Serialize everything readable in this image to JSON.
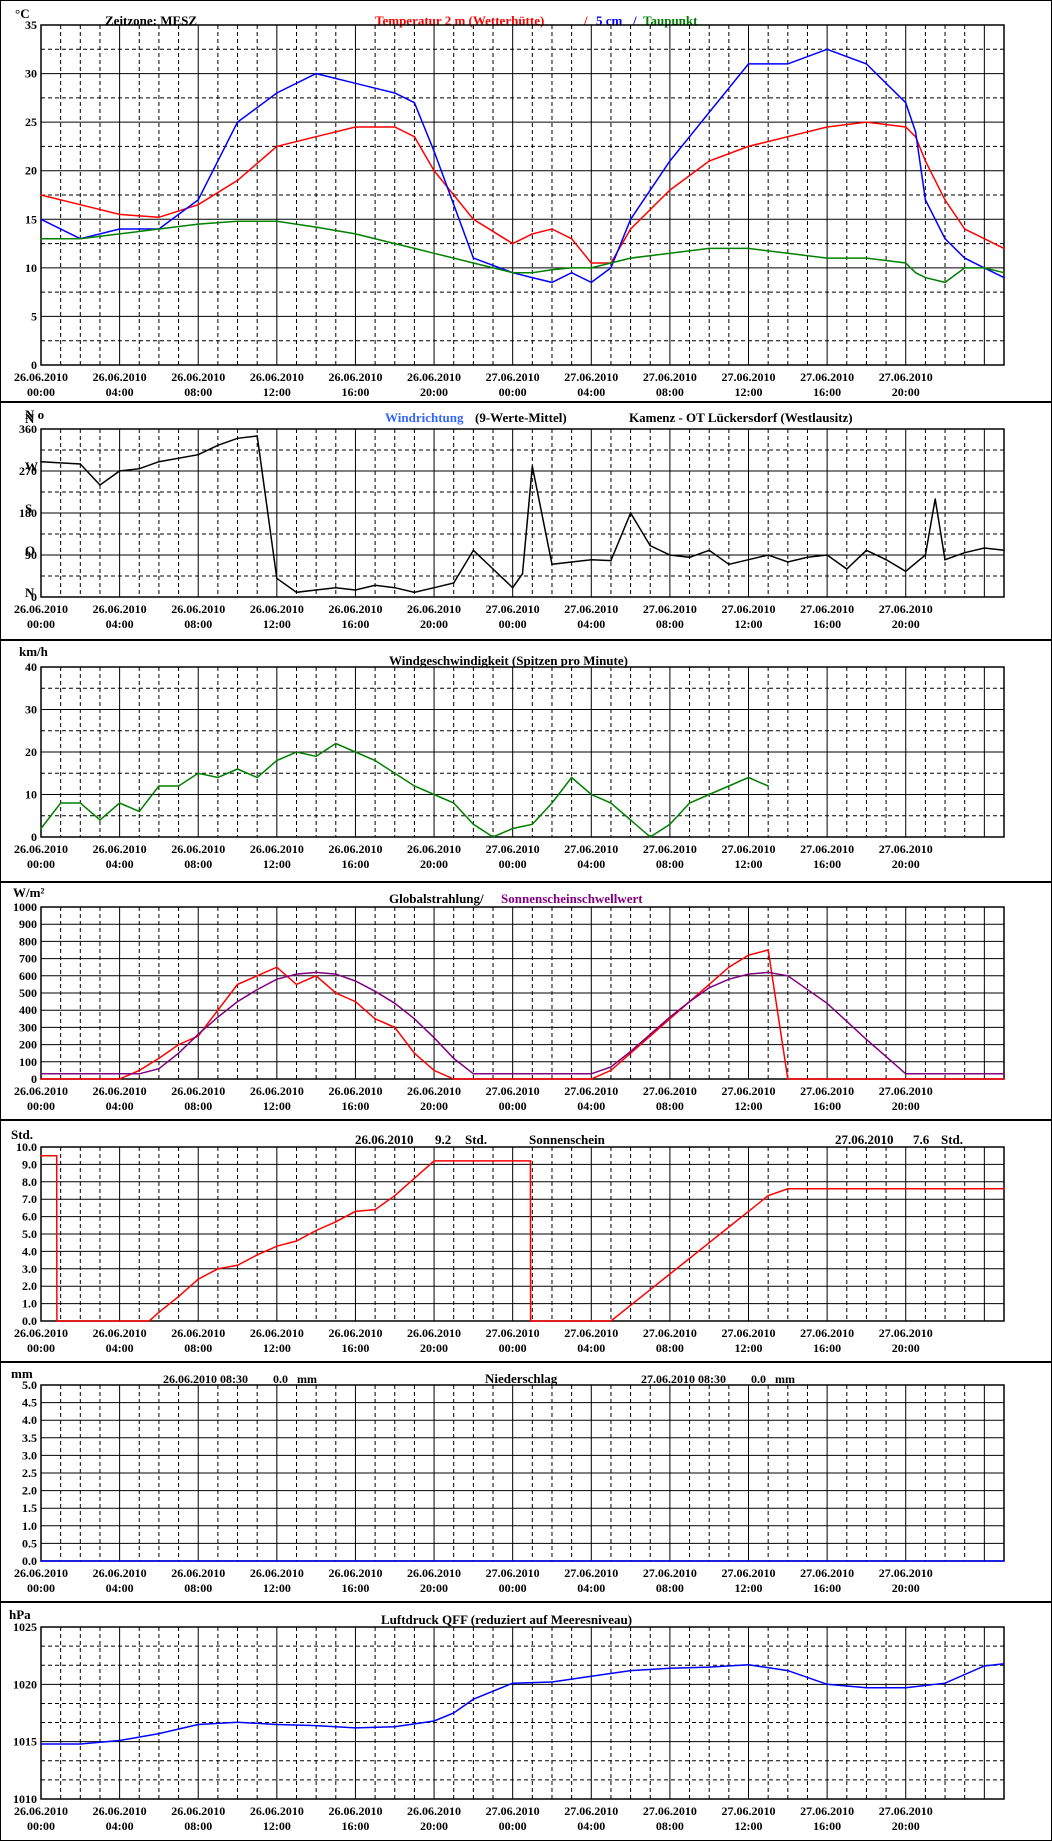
{
  "x_labels": [
    [
      "26.06.2010",
      "00:00"
    ],
    [
      "26.06.2010",
      "04:00"
    ],
    [
      "26.06.2010",
      "08:00"
    ],
    [
      "26.06.2010",
      "12:00"
    ],
    [
      "26.06.2010",
      "16:00"
    ],
    [
      "26.06.2010",
      "20:00"
    ],
    [
      "27.06.2010",
      "00:00"
    ],
    [
      "27.06.2010",
      "04:00"
    ],
    [
      "27.06.2010",
      "08:00"
    ],
    [
      "27.06.2010",
      "12:00"
    ],
    [
      "27.06.2010",
      "16:00"
    ],
    [
      "27.06.2010",
      "20:00"
    ]
  ],
  "colors": {
    "red": "#ff0000",
    "blue": "#0000ff",
    "lightblue": "#3366ff",
    "green": "#008000",
    "purple": "#800080",
    "black": "#000000"
  },
  "panels": {
    "temperature": {
      "unit": "°C",
      "zone": "Zeitzone: MESZ",
      "title_red": "Temperatur 2 m (Wetterhütte)",
      "sep": "/",
      "title_blue": "5 cm",
      "title_green": "Taupunkt",
      "ticks": [
        "0",
        "5",
        "10",
        "15",
        "20",
        "25",
        "30",
        "35"
      ],
      "chart_data": {
        "type": "line",
        "x_hours": [
          0,
          2,
          4,
          6,
          8,
          10,
          12,
          14,
          16,
          18,
          19,
          20,
          22,
          24,
          25,
          26,
          27,
          28,
          29,
          30,
          32,
          34,
          36,
          38,
          40,
          42,
          44,
          44.5,
          45,
          46,
          47,
          48,
          49
        ],
        "ylim": [
          0,
          35
        ],
        "series": [
          {
            "name": "Temperatur 2 m (Wetterhütte)",
            "color": "red",
            "values": [
              17.5,
              16.5,
              15.5,
              15.2,
              16.5,
              19,
              22.5,
              23.5,
              24.5,
              24.5,
              23.5,
              20,
              15,
              12.5,
              13.5,
              14,
              13,
              10.5,
              10.5,
              14,
              18,
              21,
              22.5,
              23.5,
              24.5,
              25,
              24.5,
              23.5,
              21,
              17,
              14,
              13,
              12
            ]
          },
          {
            "name": "5 cm",
            "color": "blue",
            "values": [
              15,
              13,
              14,
              14,
              17,
              25,
              28,
              30,
              29,
              28,
              27,
              22,
              11,
              9.5,
              9,
              8.5,
              9.5,
              8.5,
              10,
              15,
              21,
              26,
              31,
              31,
              32.5,
              31,
              27,
              24,
              17,
              13,
              11,
              10,
              9
            ]
          },
          {
            "name": "Taupunkt",
            "color": "green",
            "values": [
              13,
              13,
              13.5,
              14,
              14.5,
              14.8,
              14.8,
              14.2,
              13.5,
              12.5,
              12,
              11.5,
              10.5,
              9.5,
              9.5,
              9.8,
              10,
              10,
              10.5,
              11,
              11.5,
              12,
              12,
              11.5,
              11,
              11,
              10.5,
              9.5,
              9,
              8.5,
              10,
              10,
              9.5
            ]
          }
        ]
      }
    },
    "wind_direction": {
      "unit": "N o",
      "title_blue": "Windrichtung",
      "title_rest": "(9-Werte-Mittel)",
      "location": "Kamenz - OT Lückersdorf (Westlausitz)",
      "ticks": [
        "0",
        "90",
        "180",
        "270",
        "360"
      ],
      "side_letters": [
        "N",
        "O",
        "S",
        "W",
        "N"
      ],
      "chart_data": {
        "type": "line",
        "x_hours": [
          0,
          2,
          3,
          4,
          5,
          6,
          8,
          9,
          10,
          11,
          12,
          13,
          14,
          15,
          16,
          17,
          18,
          19,
          20,
          21,
          22,
          23,
          24,
          24.5,
          25,
          26,
          27,
          28,
          29,
          30,
          31,
          32,
          33,
          34,
          35,
          36,
          37,
          38,
          39,
          40,
          41,
          42,
          43,
          44,
          45,
          45.5,
          46,
          47,
          48,
          49
        ],
        "ylim": [
          0,
          360
        ],
        "series": [
          {
            "name": "Windrichtung",
            "color": "black",
            "values": [
              290,
              285,
              240,
              270,
              275,
              290,
              305,
              325,
              340,
              345,
              40,
              10,
              15,
              20,
              15,
              25,
              20,
              10,
              20,
              30,
              100,
              60,
              20,
              50,
              280,
              70,
              75,
              80,
              78,
              180,
              110,
              90,
              85,
              100,
              70,
              80,
              90,
              75,
              85,
              90,
              60,
              100,
              80,
              55,
              90,
              210,
              80,
              95,
              105,
              100
            ]
          }
        ]
      }
    },
    "wind_speed": {
      "unit": "km/h",
      "title": "Windgeschwindigkeit (Spitzen pro Minute)",
      "ticks": [
        "0",
        "10",
        "20",
        "30",
        "40"
      ],
      "chart_data": {
        "type": "line",
        "x_hours": [
          0,
          1,
          2,
          3,
          4,
          5,
          6,
          7,
          8,
          9,
          10,
          11,
          12,
          13,
          14,
          15,
          16,
          17,
          18,
          19,
          20,
          21,
          22,
          23,
          24,
          25,
          26,
          27,
          28,
          29,
          30,
          31,
          32,
          33,
          34,
          35,
          36,
          37
        ],
        "ylim": [
          0,
          40
        ],
        "series": [
          {
            "name": "Windgeschwindigkeit",
            "color": "green",
            "values": [
              2,
              8,
              8,
              4,
              8,
              6,
              12,
              12,
              15,
              14,
              16,
              14,
              18,
              20,
              19,
              22,
              20,
              18,
              15,
              12,
              10,
              8,
              3,
              0,
              2,
              3,
              8,
              14,
              10,
              8,
              4,
              0,
              3,
              8,
              10,
              12,
              14,
              12
            ]
          }
        ]
      }
    },
    "radiation": {
      "unit": "W/m²",
      "title_black": "Globalstrahlung/",
      "title_purple": "Sonnenscheinschwellwert",
      "ticks": [
        "0",
        "100",
        "200",
        "300",
        "400",
        "500",
        "600",
        "700",
        "800",
        "900",
        "1000"
      ],
      "chart_data": {
        "type": "line",
        "x_hours": [
          0,
          4,
          5,
          6,
          7,
          8,
          9,
          10,
          11,
          12,
          13,
          14,
          15,
          16,
          17,
          18,
          19,
          20,
          21,
          22,
          24,
          26,
          28,
          29,
          30,
          31,
          32,
          33,
          34,
          35,
          36,
          37,
          38,
          40,
          42,
          44,
          46,
          49
        ],
        "ylim": [
          0,
          1000
        ],
        "series": [
          {
            "name": "Globalstrahlung",
            "color": "red",
            "values": [
              0,
              0,
              50,
              120,
              200,
              250,
              400,
              550,
              600,
              650,
              550,
              600,
              500,
              450,
              350,
              300,
              150,
              50,
              0,
              0,
              0,
              0,
              0,
              50,
              150,
              250,
              350,
              450,
              550,
              650,
              720,
              750,
              0,
              0,
              0,
              0,
              0,
              0
            ]
          },
          {
            "name": "Sonnenscheinschwellwert",
            "color": "purple",
            "values": [
              30,
              30,
              30,
              60,
              150,
              260,
              360,
              450,
              520,
              580,
              610,
              620,
              610,
              570,
              510,
              440,
              350,
              240,
              120,
              30,
              30,
              30,
              30,
              70,
              160,
              260,
              360,
              450,
              530,
              580,
              610,
              620,
              600,
              440,
              230,
              30,
              30,
              30
            ]
          }
        ]
      }
    },
    "sunshine": {
      "unit": "Std.",
      "day1_date": "26.06.2010",
      "day1_value": "9.2",
      "day1_unit": "Std.",
      "title": "Sonnenschein",
      "day2_date": "27.06.2010",
      "day2_value": "7.6",
      "day2_unit": "Std.",
      "ticks": [
        "0.0",
        "1.0",
        "2.0",
        "3.0",
        "4.0",
        "5.0",
        "6.0",
        "7.0",
        "8.0",
        "9.0",
        "10.0"
      ],
      "chart_data": {
        "type": "line",
        "x_hours": [
          0,
          0.8,
          0.81,
          5.5,
          6,
          7,
          8,
          9,
          10,
          11,
          12,
          13,
          14,
          15,
          16,
          17,
          18,
          19,
          20,
          21,
          24.9,
          24.91,
          28.5,
          29,
          30,
          31,
          32,
          33,
          34,
          35,
          36,
          37,
          38,
          40,
          44,
          49
        ],
        "ylim": [
          0,
          10
        ],
        "series": [
          {
            "name": "Sonnenschein",
            "color": "red",
            "values": [
              9.5,
              9.5,
              0,
              0,
              0.5,
              1.4,
              2.4,
              3.0,
              3.2,
              3.8,
              4.3,
              4.6,
              5.2,
              5.7,
              6.3,
              6.4,
              7.2,
              8.2,
              9.2,
              9.2,
              9.2,
              0,
              0,
              0,
              0.9,
              1.8,
              2.7,
              3.6,
              4.5,
              5.4,
              6.3,
              7.2,
              7.6,
              7.6,
              7.6,
              7.6
            ]
          }
        ]
      }
    },
    "precipitation": {
      "unit": "mm",
      "day1_stamp": "26.06.2010 08:30",
      "day1_value": "0.0",
      "day1_unit": "mm",
      "title": "Niederschlag",
      "day2_stamp": "27.06.2010 08:30",
      "day2_value": "0.0",
      "day2_unit": "mm",
      "ticks": [
        "0.0",
        "0.5",
        "1.0",
        "1.5",
        "2.0",
        "2.5",
        "3.0",
        "3.5",
        "4.0",
        "4.5",
        "5.0"
      ],
      "chart_data": {
        "type": "line",
        "x_hours": [
          0,
          49
        ],
        "ylim": [
          0,
          5
        ],
        "series": [
          {
            "name": "Niederschlag",
            "color": "blue",
            "values": [
              0,
              0
            ]
          }
        ]
      }
    },
    "pressure": {
      "unit": "hPa",
      "title": "Luftdruck QFF (reduziert auf Meeresniveau)",
      "ticks": [
        "1010",
        "1015",
        "1020",
        "1025"
      ],
      "chart_data": {
        "type": "line",
        "x_hours": [
          0,
          2,
          4,
          6,
          8,
          10,
          12,
          14,
          16,
          18,
          20,
          21,
          22,
          24,
          26,
          28,
          30,
          32,
          34,
          36,
          38,
          40,
          42,
          44,
          46,
          48,
          49
        ],
        "ylim": [
          1010,
          1025
        ],
        "series": [
          {
            "name": "Luftdruck QFF",
            "color": "blue",
            "values": [
              1014.8,
              1014.8,
              1015.1,
              1015.7,
              1016.5,
              1016.7,
              1016.5,
              1016.4,
              1016.2,
              1016.3,
              1016.8,
              1017.5,
              1018.7,
              1020.1,
              1020.2,
              1020.7,
              1021.2,
              1021.4,
              1021.5,
              1021.7,
              1021.2,
              1020.0,
              1019.7,
              1019.7,
              1020.1,
              1021.6,
              1021.8
            ]
          }
        ]
      }
    }
  }
}
